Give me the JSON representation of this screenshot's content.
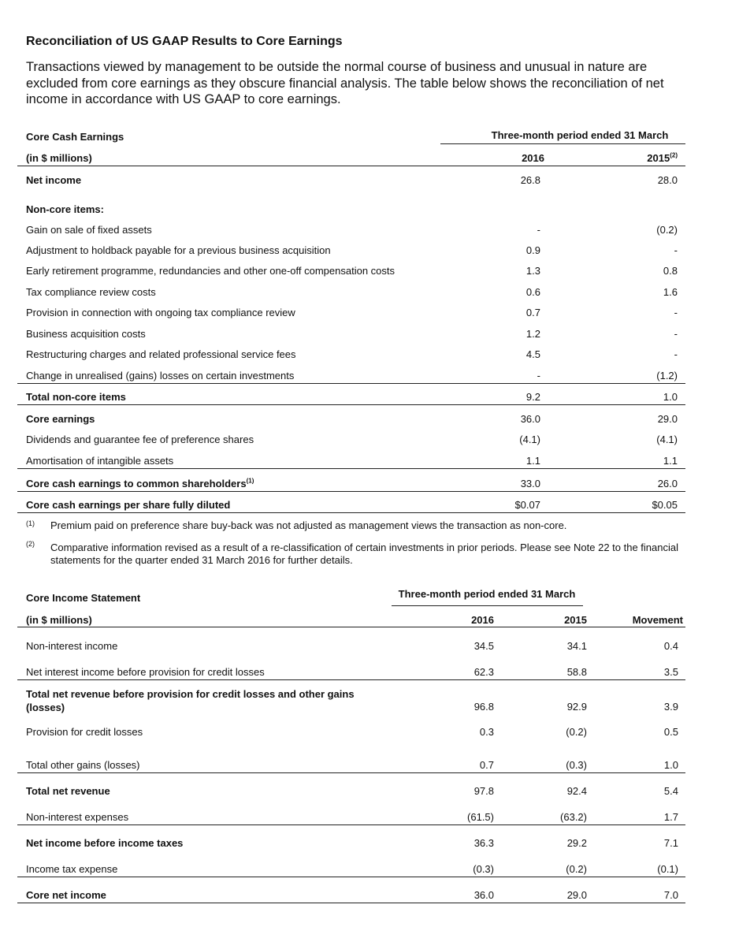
{
  "title": "Reconciliation of US GAAP Results to Core Earnings",
  "intro": "Transactions viewed by management to be outside the normal course of business and unusual in nature are excluded from core earnings as they obscure financial analysis. The table below shows the reconciliation of net income in accordance with US GAAP to core earnings.",
  "cash_table": {
    "title": "Core Cash Earnings",
    "period_header": "Three-month period ended 31 March",
    "units": "(in $ millions)",
    "columns": [
      "2016",
      "2015"
    ],
    "column_notes": [
      null,
      "(2)"
    ],
    "rows": [
      {
        "label": "Net income",
        "values": [
          "26.8",
          "28.0"
        ],
        "bold": true
      },
      {
        "label": "Non-core items:",
        "bold": true
      },
      {
        "label": "Gain on sale of fixed assets",
        "values": [
          "-",
          "(0.2)"
        ]
      },
      {
        "label": "Adjustment to holdback payable for a previous business acquisition",
        "values": [
          "0.9",
          "-"
        ]
      },
      {
        "label": "Early retirement programme, redundancies and other one-off compensation costs",
        "values": [
          "1.3",
          "0.8"
        ]
      },
      {
        "label": "Tax compliance review costs",
        "values": [
          "0.6",
          "1.6"
        ]
      },
      {
        "label": "Provision in connection with ongoing tax compliance review",
        "values": [
          "0.7",
          "-"
        ]
      },
      {
        "label": "Business acquisition costs",
        "values": [
          "1.2",
          "-"
        ]
      },
      {
        "label": "Restructuring charges and related professional service fees",
        "values": [
          "4.5",
          "-"
        ]
      },
      {
        "label": "Change in unrealised (gains) losses on certain investments",
        "values": [
          "-",
          "(1.2)"
        ]
      },
      {
        "label": "Total non-core items",
        "values": [
          "9.2",
          "1.0"
        ],
        "bold": true
      },
      {
        "label": "Core earnings",
        "values": [
          "36.0",
          "29.0"
        ],
        "bold": true
      },
      {
        "label": "Dividends and guarantee fee of preference shares",
        "values": [
          "(4.1)",
          "(4.1)"
        ]
      },
      {
        "label": "Amortisation of intangible assets",
        "values": [
          "1.1",
          "1.1"
        ]
      },
      {
        "label": "Core cash earnings to common shareholders",
        "note": "(1)",
        "values": [
          "33.0",
          "26.0"
        ],
        "bold": true
      },
      {
        "label": "Core cash earnings per share fully diluted",
        "values": [
          "$0.07",
          "$0.05"
        ],
        "bold": true
      }
    ]
  },
  "footnotes": [
    {
      "mark": "(1)",
      "text": "Premium paid on preference share buy-back was not adjusted as management views the transaction as non-core."
    },
    {
      "mark": "(2)",
      "text": "Comparative information revised as a result of a re-classification of certain investments in prior periods. Please see Note 22 to the financial statements for the quarter ended 31 March 2016 for further details."
    }
  ],
  "income_table": {
    "title": "Core Income Statement",
    "period_header": "Three-month period ended 31 March",
    "units": "(in $ millions)",
    "columns": [
      "2016",
      "2015",
      "Movement"
    ],
    "rows": [
      {
        "label": "Non-interest income",
        "values": [
          "34.5",
          "34.1",
          "0.4"
        ]
      },
      {
        "label": "Net interest income before provision for credit losses",
        "values": [
          "62.3",
          "58.8",
          "3.5"
        ]
      },
      {
        "label": "Total net revenue before provision for credit losses and other gains (losses)",
        "values": [
          "96.8",
          "92.9",
          "3.9"
        ],
        "bold": true
      },
      {
        "label": "Provision for credit losses",
        "values": [
          "0.3",
          "(0.2)",
          "0.5"
        ]
      },
      {
        "label": "Total other gains (losses)",
        "values": [
          "0.7",
          "(0.3)",
          "1.0"
        ]
      },
      {
        "label": "Total net revenue",
        "values": [
          "97.8",
          "92.4",
          "5.4"
        ],
        "bold": true
      },
      {
        "label": "Non-interest expenses",
        "values": [
          "(61.5)",
          "(63.2)",
          "1.7"
        ]
      },
      {
        "label": "Net income before income taxes",
        "values": [
          "36.3",
          "29.2",
          "7.1"
        ],
        "bold": true
      },
      {
        "label": "Income tax expense",
        "values": [
          "(0.3)",
          "(0.2)",
          "(0.1)"
        ]
      },
      {
        "label": "Core net income",
        "values": [
          "36.0",
          "29.0",
          "7.0"
        ],
        "bold": true
      }
    ]
  }
}
